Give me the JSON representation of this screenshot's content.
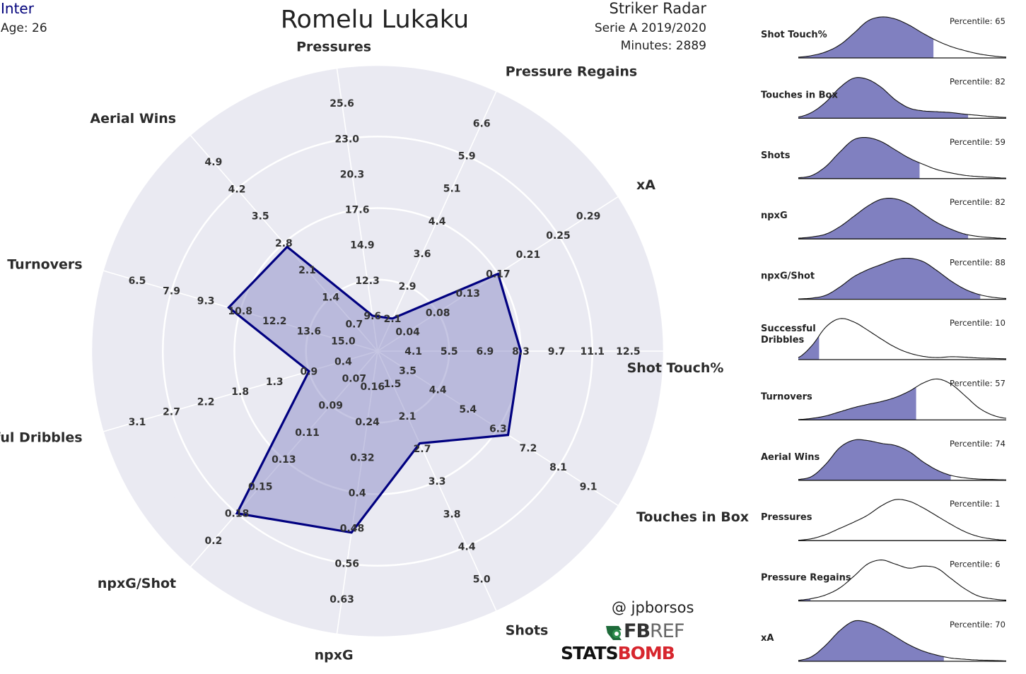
{
  "header": {
    "team": "Inter",
    "age": "Age: 26",
    "player": "Romelu Lukaku",
    "radar_type": "Striker Radar",
    "league": "Serie A 2019/2020",
    "minutes": "Minutes: 2889"
  },
  "credits": {
    "author": "@ jpborsos",
    "fbref": "FBREF",
    "statsbomb": "STATSBOMB"
  },
  "colors": {
    "ring_light": "#eaeaf2",
    "ring_white": "#ffffff",
    "fill": "#8080c0",
    "outline": "#000080",
    "team": "#00007a"
  },
  "chart_data": [
    {
      "type": "radar",
      "title": "Romelu Lukaku",
      "rings": 8,
      "axes": [
        {
          "name": "Shot Touch%",
          "ticks": [
            "4.1",
            "5.5",
            "6.9",
            "8.3",
            "9.7",
            "11.1",
            "12.5"
          ],
          "value": 8.3
        },
        {
          "name": "Touches in Box",
          "ticks": [
            "3.5",
            "4.4",
            "5.4",
            "6.3",
            "7.2",
            "8.1",
            "9.1"
          ],
          "value": 6.6
        },
        {
          "name": "Shots",
          "ticks": [
            "1.5",
            "2.1",
            "2.7",
            "3.3",
            "3.8",
            "4.4",
            "5.0"
          ],
          "value": 2.6
        },
        {
          "name": "npxG",
          "ticks": [
            "0.16",
            "0.24",
            "0.32",
            "0.4",
            "0.48",
            "0.56",
            "0.63"
          ],
          "value": 0.49
        },
        {
          "name": "npxG/Shot",
          "ticks": [
            "0.07",
            "0.09",
            "0.11",
            "0.13",
            "0.15",
            "0.18",
            "0.2"
          ],
          "value": 0.18
        },
        {
          "name": "Successful Dribbles",
          "ticks": [
            "0.4",
            "0.9",
            "1.3",
            "1.8",
            "2.2",
            "2.7",
            "3.1"
          ],
          "value": 0.9
        },
        {
          "name": "Turnovers",
          "ticks": [
            "15.0",
            "13.6",
            "12.2",
            "10.8",
            "9.3",
            "7.9",
            "6.5"
          ],
          "value": 10.3
        },
        {
          "name": "Aerial Wins",
          "ticks": [
            "0.7",
            "1.4",
            "2.1",
            "2.8",
            "3.5",
            "4.2",
            "4.9"
          ],
          "value": 2.7
        },
        {
          "name": "Pressures",
          "ticks": [
            "9.6",
            "12.3",
            "14.9",
            "17.6",
            "20.3",
            "23.0",
            "25.6"
          ],
          "value": 9.6
        },
        {
          "name": "Pressure Regains",
          "ticks": [
            "2.1",
            "2.9",
            "3.6",
            "4.4",
            "5.1",
            "5.9",
            "6.6"
          ],
          "value": 2.1
        },
        {
          "name": "xA",
          "ticks": [
            "0.04",
            "0.08",
            "0.13",
            "0.17",
            "0.21",
            "0.25",
            "0.29"
          ],
          "value": 0.17
        }
      ]
    },
    {
      "type": "area",
      "panels": [
        {
          "label": "Shot Touch%",
          "percentile": "Percentile: 65",
          "pct": 65,
          "curve": [
            0.02,
            0.06,
            0.15,
            0.32,
            0.6,
            0.9,
            1.0,
            0.95,
            0.8,
            0.6,
            0.42,
            0.28,
            0.18,
            0.1,
            0.05,
            0.02
          ]
        },
        {
          "label": "Touches in Box",
          "percentile": "Percentile: 82",
          "pct": 82,
          "curve": [
            0.03,
            0.15,
            0.4,
            0.75,
            0.98,
            0.95,
            0.75,
            0.45,
            0.25,
            0.18,
            0.16,
            0.14,
            0.1,
            0.07,
            0.04,
            0.02
          ]
        },
        {
          "label": "Shots",
          "percentile": "Percentile: 59",
          "pct": 59,
          "curve": [
            0.02,
            0.08,
            0.3,
            0.65,
            0.95,
            1.0,
            0.9,
            0.7,
            0.5,
            0.35,
            0.22,
            0.14,
            0.08,
            0.05,
            0.03,
            0.01
          ]
        },
        {
          "label": "npxG",
          "percentile": "Percentile: 82",
          "pct": 82,
          "curve": [
            0.02,
            0.05,
            0.12,
            0.3,
            0.55,
            0.8,
            0.97,
            0.98,
            0.85,
            0.62,
            0.4,
            0.24,
            0.12,
            0.06,
            0.03,
            0.01
          ]
        },
        {
          "label": "npxG/Shot",
          "percentile": "Percentile: 88",
          "pct": 88,
          "curve": [
            0.01,
            0.03,
            0.1,
            0.3,
            0.55,
            0.72,
            0.85,
            0.97,
            1.0,
            0.92,
            0.7,
            0.45,
            0.25,
            0.12,
            0.05,
            0.02
          ]
        },
        {
          "label": "Successful Dribbles",
          "percentile": "Percentile: 10",
          "pct": 10,
          "curve": [
            0.05,
            0.35,
            0.8,
            1.0,
            0.92,
            0.72,
            0.5,
            0.3,
            0.16,
            0.08,
            0.05,
            0.07,
            0.06,
            0.04,
            0.03,
            0.02
          ]
        },
        {
          "label": "Turnovers",
          "percentile": "Percentile: 57",
          "pct": 57,
          "curve": [
            0.01,
            0.04,
            0.1,
            0.2,
            0.3,
            0.38,
            0.45,
            0.55,
            0.7,
            0.9,
            1.0,
            0.88,
            0.6,
            0.3,
            0.12,
            0.04
          ]
        },
        {
          "label": "Aerial Wins",
          "percentile": "Percentile: 74",
          "pct": 74,
          "curve": [
            0.02,
            0.1,
            0.4,
            0.8,
            0.98,
            0.97,
            0.9,
            0.85,
            0.7,
            0.45,
            0.25,
            0.12,
            0.06,
            0.03,
            0.02,
            0.01
          ]
        },
        {
          "label": "Pressures",
          "percentile": "Percentile: 1",
          "pct": 1,
          "curve": [
            0.01,
            0.05,
            0.15,
            0.3,
            0.45,
            0.62,
            0.85,
            1.0,
            0.96,
            0.8,
            0.6,
            0.4,
            0.22,
            0.1,
            0.04,
            0.01
          ]
        },
        {
          "label": "Pressure Regains",
          "percentile": "Percentile: 6",
          "pct": 6,
          "curve": [
            0.02,
            0.06,
            0.15,
            0.32,
            0.6,
            0.9,
            1.0,
            0.9,
            0.8,
            0.85,
            0.8,
            0.55,
            0.3,
            0.12,
            0.05,
            0.02
          ]
        },
        {
          "label": "xA",
          "percentile": "Percentile: 70",
          "pct": 70,
          "curve": [
            0.02,
            0.12,
            0.4,
            0.75,
            0.98,
            0.95,
            0.8,
            0.6,
            0.4,
            0.25,
            0.15,
            0.08,
            0.05,
            0.03,
            0.02,
            0.01
          ]
        }
      ]
    }
  ]
}
